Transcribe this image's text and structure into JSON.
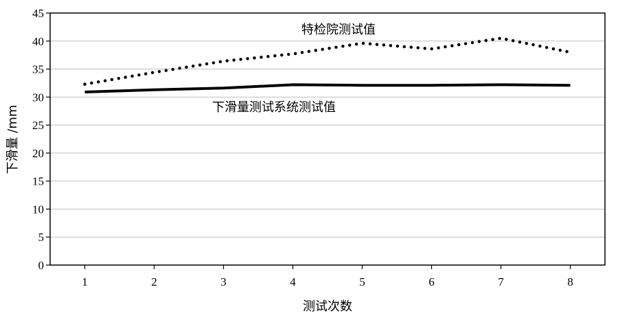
{
  "chart_data": {
    "type": "line",
    "xlabel": "测试次数",
    "ylabel": "下滑量 /mm",
    "x": [
      1,
      2,
      3,
      4,
      5,
      6,
      7,
      8
    ],
    "xlim": [
      0.5,
      8.5
    ],
    "ylim": [
      0,
      45
    ],
    "yticks": [
      0,
      5,
      10,
      15,
      20,
      25,
      30,
      35,
      40,
      45
    ],
    "grid": "horizontal",
    "legend": "inline labels",
    "series": [
      {
        "name": "特检院测试值",
        "style": "dotted",
        "color": "#000000",
        "values": [
          32.3,
          34.4,
          36.4,
          37.7,
          39.6,
          38.6,
          40.5,
          38.0
        ]
      },
      {
        "name": "下滑量测试系统测试值",
        "style": "solid",
        "color": "#000000",
        "values": [
          30.9,
          31.3,
          31.6,
          32.2,
          32.1,
          32.1,
          32.2,
          32.1
        ]
      }
    ]
  }
}
